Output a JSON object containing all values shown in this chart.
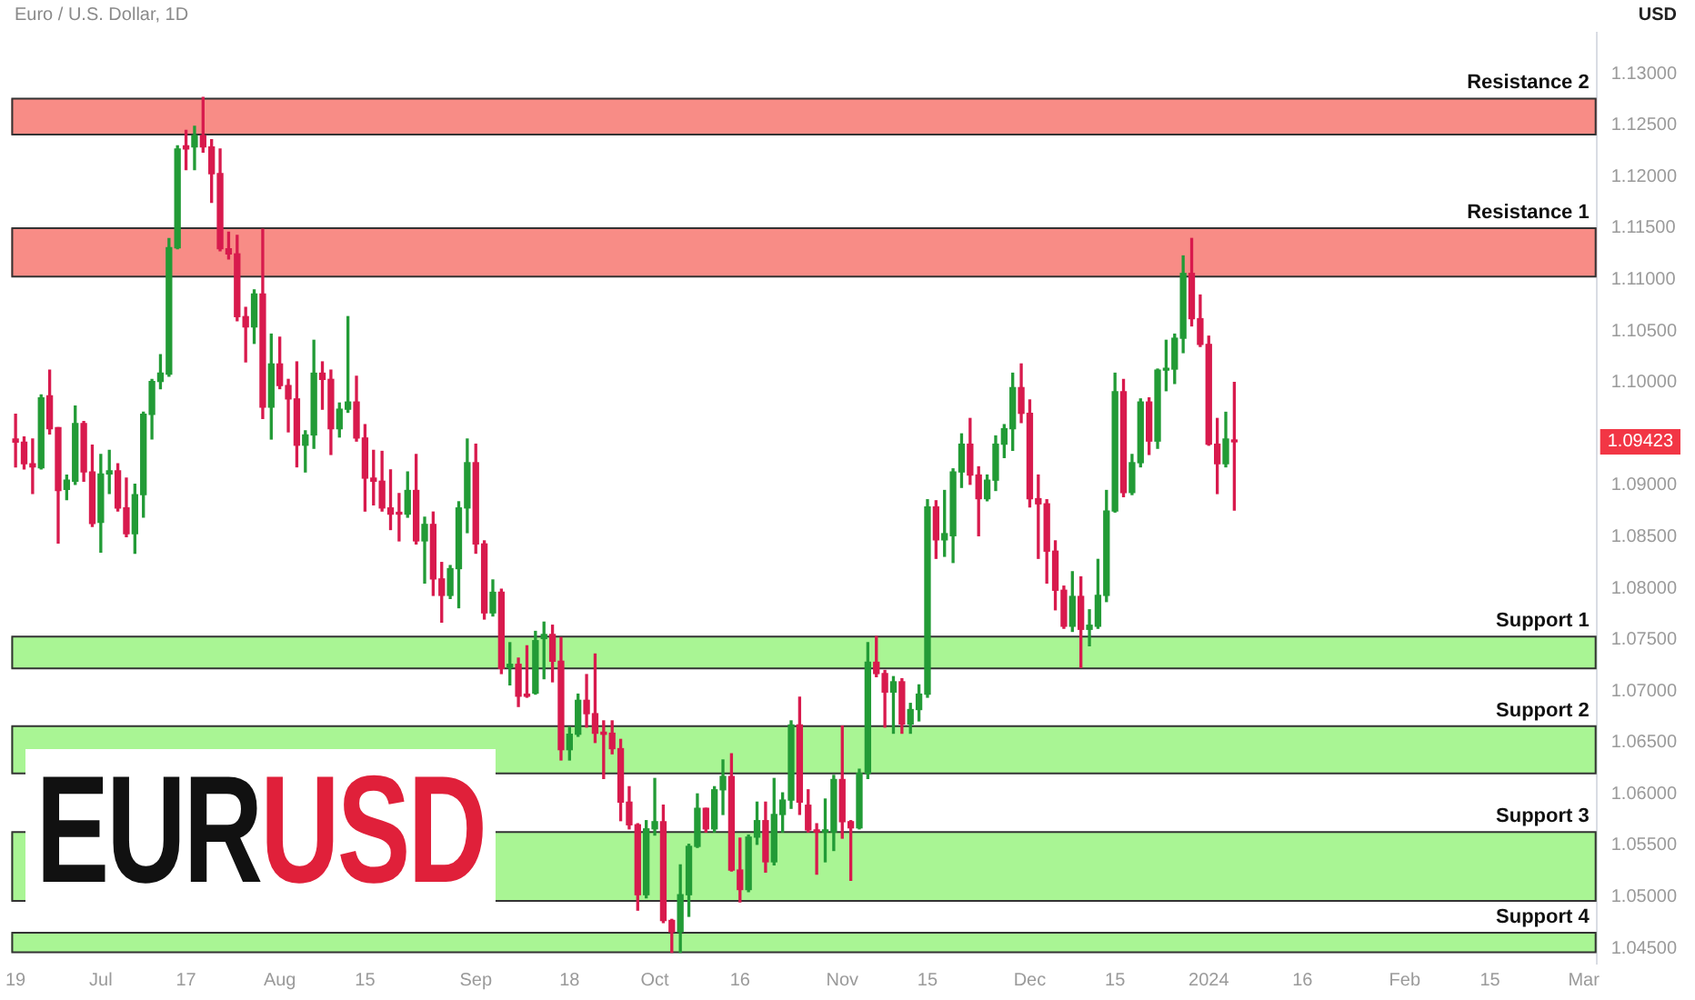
{
  "chart_data": {
    "type": "candlestick",
    "title": "Euro / U.S. Dollar, 1D",
    "subtitle": "EURUSD",
    "ylabel": "USD",
    "categories": [
      "19",
      null,
      null,
      null,
      null,
      null,
      null,
      null,
      null,
      null,
      "Jul",
      null,
      null,
      null,
      null,
      null,
      null,
      null,
      null,
      null,
      "17",
      null,
      null,
      null,
      null,
      null,
      null,
      null,
      null,
      null,
      null,
      "Aug",
      null,
      null,
      null,
      null,
      null,
      null,
      null,
      null,
      null,
      "15",
      null,
      null,
      null,
      null,
      null,
      null,
      null,
      null,
      null,
      null,
      null,
      null,
      "Sep",
      null,
      null,
      null,
      null,
      null,
      null,
      null,
      null,
      null,
      null,
      "18",
      null,
      null,
      null,
      null,
      null,
      null,
      null,
      null,
      null,
      "Oct",
      null,
      null,
      null,
      null,
      null,
      null,
      null,
      null,
      null,
      "16",
      null,
      null,
      null,
      null,
      null,
      null,
      null,
      null,
      null,
      null,
      null,
      "Nov",
      null,
      null,
      null,
      null,
      null,
      null,
      null,
      null,
      null,
      "15",
      null,
      null,
      null,
      null,
      null,
      null,
      null,
      null,
      null,
      null,
      null,
      "Dec",
      null,
      null,
      null,
      null,
      null,
      null,
      null,
      null,
      null,
      "15",
      null,
      null,
      null,
      null,
      null,
      null,
      null,
      null,
      null,
      null,
      "2024",
      null,
      null,
      null,
      null,
      null,
      null,
      null,
      null,
      null,
      null,
      "16",
      null,
      null,
      null,
      null,
      null,
      null,
      null,
      null,
      null,
      null,
      null,
      "Feb",
      null,
      null,
      null,
      null,
      null,
      null,
      null,
      null,
      null,
      "15",
      null,
      null,
      null,
      null,
      null,
      null,
      null,
      null,
      null,
      null,
      "Mar",
      null
    ],
    "colors": [
      "#d81a4d",
      "#d81a4d",
      "#d81a4d",
      "#229b36",
      "#d81a4d",
      "#d81a4d",
      "#229b36",
      "#229b36",
      "#d81a4d",
      "#d81a4d",
      "#229b36",
      "#229b36",
      "#d81a4d",
      "#d81a4d",
      "#229b36",
      "#229b36",
      "#229b36",
      "#229b36",
      "#229b36",
      "#229b36",
      "#d81a4d",
      "#229b36",
      "#d81a4d",
      "#d81a4d",
      "#d81a4d",
      "#d81a4d",
      "#d81a4d",
      "#d81a4d",
      "#229b36",
      "#d81a4d",
      "#229b36",
      "#d81a4d",
      "#d81a4d",
      "#d81a4d",
      "#229b36",
      "#229b36",
      "#d81a4d",
      "#d81a4d",
      "#229b36",
      "#229b36",
      "#d81a4d",
      "#d81a4d",
      "#d81a4d",
      "#d81a4d",
      "#d81a4d",
      "#d81a4d",
      "#229b36",
      "#d81a4d",
      "#229b36",
      "#d81a4d",
      "#d81a4d",
      "#229b36",
      "#229b36",
      "#229b36",
      "#d81a4d",
      "#d81a4d",
      "#229b36",
      "#d81a4d",
      "#229b36",
      "#d81a4d",
      "#d81a4d",
      "#229b36",
      "#229b36",
      "#d81a4d",
      "#d81a4d",
      "#229b36",
      "#229b36",
      "#d81a4d",
      "#d81a4d",
      "#d81a4d",
      "#d81a4d",
      "#d81a4d",
      "#d81a4d",
      "#d81a4d",
      "#229b36",
      "#229b36",
      "#d81a4d",
      "#d81a4d",
      "#229b36",
      "#229b36",
      "#229b36",
      "#d81a4d",
      "#229b36",
      "#229b36",
      "#d81a4d",
      "#d81a4d",
      "#229b36",
      "#229b36",
      "#d81a4d",
      "#229b36",
      "#229b36",
      "#229b36",
      "#d81a4d",
      "#d81a4d",
      "#d81a4d",
      "#229b36",
      "#229b36",
      "#d81a4d",
      "#d81a4d",
      "#229b36",
      "#229b36",
      "#d81a4d",
      "#d81a4d",
      "#229b36",
      "#d81a4d",
      "#229b36",
      "#229b36",
      "#229b36",
      "#d81a4d",
      "#229b36",
      "#229b36",
      "#229b36",
      "#d81a4d",
      "#d81a4d",
      "#229b36",
      "#229b36",
      "#229b36",
      "#229b36",
      "#d81a4d",
      "#d81a4d",
      "#d81a4d",
      "#d81a4d",
      "#d81a4d",
      "#d81a4d",
      "#229b36",
      "#d81a4d",
      "#229b36",
      "#229b36",
      "#229b36",
      "#229b36",
      "#d81a4d",
      "#229b36",
      "#229b36",
      "#d81a4d",
      "#229b36",
      "#229b36",
      "#229b36",
      "#229b36",
      "#d81a4d",
      "#d81a4d",
      "#d81a4d",
      "#d81a4d",
      "#229b36",
      "#d81a4d",
      null,
      null,
      null,
      null,
      null,
      null,
      null,
      null,
      null,
      null,
      null,
      null,
      null,
      null,
      null,
      null,
      null,
      null,
      null,
      null,
      null,
      null,
      null,
      null,
      null,
      null,
      null,
      null,
      null,
      null,
      null,
      null,
      null,
      null,
      null,
      null,
      null,
      null,
      null,
      null,
      null,
      null
    ],
    "ohlc": [
      [
        1.0945,
        1.0969,
        1.0918,
        1.0942
      ],
      [
        1.0942,
        1.0947,
        1.0916,
        1.0921
      ],
      [
        1.0921,
        1.0945,
        1.0892,
        1.0918
      ],
      [
        1.0917,
        1.0988,
        1.0916,
        1.0985
      ],
      [
        1.0987,
        1.1012,
        1.095,
        1.0955
      ],
      [
        1.0956,
        1.0956,
        1.0844,
        1.0895
      ],
      [
        1.0896,
        1.091,
        1.0886,
        1.0905
      ],
      [
        1.0904,
        1.0977,
        1.0901,
        1.096
      ],
      [
        1.096,
        1.0962,
        1.0904,
        1.0913
      ],
      [
        1.0913,
        1.0939,
        1.086,
        1.0863
      ],
      [
        1.0864,
        1.093,
        1.0835,
        1.0911
      ],
      [
        1.0911,
        1.0934,
        1.0892,
        1.0914
      ],
      [
        1.0914,
        1.0921,
        1.0875,
        1.0878
      ],
      [
        1.0878,
        1.0907,
        1.085,
        1.0853
      ],
      [
        1.0853,
        1.0901,
        1.0834,
        1.0891
      ],
      [
        1.0891,
        1.0971,
        1.0869,
        1.0969
      ],
      [
        1.0969,
        1.1003,
        1.0945,
        1.1001
      ],
      [
        1.1001,
        1.1027,
        1.0994,
        1.1009
      ],
      [
        1.1008,
        1.114,
        1.1006,
        1.1131
      ],
      [
        1.1131,
        1.123,
        1.113,
        1.1227
      ],
      [
        1.123,
        1.1245,
        1.1207,
        1.1227
      ],
      [
        1.1229,
        1.1249,
        1.1207,
        1.124
      ],
      [
        1.124,
        1.1277,
        1.1224,
        1.1229
      ],
      [
        1.1229,
        1.1236,
        1.1175,
        1.1203
      ],
      [
        1.1203,
        1.1227,
        1.1128,
        1.113
      ],
      [
        1.113,
        1.1146,
        1.112,
        1.1125
      ],
      [
        1.1125,
        1.1143,
        1.106,
        1.1064
      ],
      [
        1.1064,
        1.1073,
        1.102,
        1.1054
      ],
      [
        1.1054,
        1.109,
        1.1038,
        1.1086
      ],
      [
        1.1086,
        1.1149,
        1.0965,
        1.0976
      ],
      [
        1.0976,
        1.1047,
        1.0945,
        1.1018
      ],
      [
        1.1018,
        1.1044,
        1.0994,
        1.0997
      ],
      [
        1.0997,
        1.1003,
        1.0952,
        1.0984
      ],
      [
        1.0984,
        1.102,
        1.0918,
        1.0939
      ],
      [
        1.0939,
        1.0953,
        1.0913,
        1.0949
      ],
      [
        1.0949,
        1.1041,
        1.0936,
        1.1009
      ],
      [
        1.1009,
        1.102,
        1.0974,
        1.1003
      ],
      [
        1.1003,
        1.1012,
        1.093,
        1.0955
      ],
      [
        1.0955,
        1.098,
        1.0947,
        1.0974
      ],
      [
        1.0974,
        1.1064,
        1.0971,
        1.0981
      ],
      [
        1.0981,
        1.1006,
        1.0943,
        1.0946
      ],
      [
        1.0946,
        1.0959,
        1.0875,
        1.0907
      ],
      [
        1.0907,
        1.0934,
        1.0881,
        1.0904
      ],
      [
        1.0904,
        1.0933,
        1.0875,
        1.0878
      ],
      [
        1.0878,
        1.0915,
        1.0857,
        1.0872
      ],
      [
        1.0873,
        1.0892,
        1.0846,
        1.0872
      ],
      [
        1.0872,
        1.0913,
        1.0869,
        1.0895
      ],
      [
        1.0895,
        1.093,
        1.0843,
        1.0846
      ],
      [
        1.0846,
        1.0869,
        1.0805,
        1.0862
      ],
      [
        1.0862,
        1.0874,
        1.0793,
        1.0809
      ],
      [
        1.0809,
        1.0825,
        1.0767,
        1.0793
      ],
      [
        1.0793,
        1.0822,
        1.079,
        1.0819
      ],
      [
        1.0819,
        1.0884,
        1.0781,
        1.0878
      ],
      [
        1.0878,
        1.0945,
        1.0854,
        1.0922
      ],
      [
        1.0922,
        1.094,
        1.0834,
        1.0843
      ],
      [
        1.0843,
        1.0846,
        1.077,
        1.0776
      ],
      [
        1.0776,
        1.0808,
        1.0773,
        1.0796
      ],
      [
        1.0796,
        1.0799,
        1.0717,
        1.0722
      ],
      [
        1.0723,
        1.0747,
        1.0706,
        1.0726
      ],
      [
        1.0726,
        1.0732,
        1.0685,
        1.0695
      ],
      [
        1.0697,
        1.0744,
        1.0694,
        1.0695
      ],
      [
        1.0698,
        1.0758,
        1.0697,
        1.0749
      ],
      [
        1.0751,
        1.0767,
        1.0712,
        1.0755
      ],
      [
        1.0755,
        1.0764,
        1.0709,
        1.0729
      ],
      [
        1.0729,
        1.0752,
        1.0633,
        1.0643
      ],
      [
        1.0643,
        1.0665,
        1.0633,
        1.0658
      ],
      [
        1.0658,
        1.0697,
        1.0656,
        1.0691
      ],
      [
        1.0691,
        1.0716,
        1.0665,
        1.0678
      ],
      [
        1.0678,
        1.0736,
        1.065,
        1.0659
      ],
      [
        1.066,
        1.0671,
        1.0615,
        1.0658
      ],
      [
        1.0659,
        1.0671,
        1.0639,
        1.0644
      ],
      [
        1.0644,
        1.0653,
        1.0574,
        1.0592
      ],
      [
        1.0592,
        1.0607,
        1.0566,
        1.057
      ],
      [
        1.057,
        1.0571,
        1.0487,
        1.0502
      ],
      [
        1.0502,
        1.0574,
        1.0499,
        1.0566
      ],
      [
        1.0566,
        1.0615,
        1.056,
        1.0573
      ],
      [
        1.0573,
        1.0589,
        1.0475,
        1.0477
      ],
      [
        1.0477,
        1.0478,
        1.0446,
        1.0466
      ],
      [
        1.0466,
        1.0531,
        1.0446,
        1.0502
      ],
      [
        1.0502,
        1.0551,
        1.0481,
        1.0549
      ],
      [
        1.0549,
        1.06,
        1.0548,
        1.0586
      ],
      [
        1.0586,
        1.0586,
        1.0563,
        1.0566
      ],
      [
        1.0566,
        1.0607,
        1.0563,
        1.0604
      ],
      [
        1.0604,
        1.0633,
        1.058,
        1.0617
      ],
      [
        1.0617,
        1.0639,
        1.0525,
        1.0526
      ],
      [
        1.0526,
        1.0557,
        1.0495,
        1.0507
      ],
      [
        1.0507,
        1.056,
        1.0505,
        1.0558
      ],
      [
        1.0558,
        1.0592,
        1.0551,
        1.0574
      ],
      [
        1.0574,
        1.0592,
        1.0524,
        1.0534
      ],
      [
        1.0534,
        1.0615,
        1.0531,
        1.058
      ],
      [
        1.058,
        1.0601,
        1.0563,
        1.0594
      ],
      [
        1.0594,
        1.0671,
        1.0586,
        1.0667
      ],
      [
        1.0667,
        1.0694,
        1.058,
        1.0592
      ],
      [
        1.0589,
        1.0604,
        1.0563,
        1.0565
      ],
      [
        1.0565,
        1.0571,
        1.0522,
        1.0563
      ],
      [
        1.0563,
        1.0595,
        1.0534,
        1.0565
      ],
      [
        1.0563,
        1.0618,
        1.0545,
        1.0614
      ],
      [
        1.0614,
        1.0666,
        1.0557,
        1.0573
      ],
      [
        1.0573,
        1.0574,
        1.0516,
        1.0567
      ],
      [
        1.0567,
        1.0624,
        1.0566,
        1.062
      ],
      [
        1.062,
        1.0747,
        1.0615,
        1.0728
      ],
      [
        1.0728,
        1.0753,
        1.0714,
        1.0717
      ],
      [
        1.0717,
        1.072,
        1.0665,
        1.0699
      ],
      [
        1.0699,
        1.0714,
        1.0659,
        1.0709
      ],
      [
        1.0709,
        1.0712,
        1.0659,
        1.0668
      ],
      [
        1.0668,
        1.0688,
        1.0659,
        1.0682
      ],
      [
        1.0682,
        1.0706,
        1.0671,
        1.0697
      ],
      [
        1.0697,
        1.0886,
        1.0694,
        1.0879
      ],
      [
        1.0879,
        1.0885,
        1.0829,
        1.0847
      ],
      [
        1.0847,
        1.0895,
        1.0831,
        1.0853
      ],
      [
        1.0851,
        1.0916,
        1.0825,
        1.0913
      ],
      [
        1.0913,
        1.095,
        1.0898,
        1.094
      ],
      [
        1.094,
        1.0965,
        1.0901,
        1.091
      ],
      [
        1.091,
        1.0918,
        1.0851,
        1.0887
      ],
      [
        1.0887,
        1.091,
        1.0885,
        1.0905
      ],
      [
        1.0905,
        1.0948,
        1.0895,
        1.094
      ],
      [
        1.094,
        1.0959,
        1.0927,
        1.0955
      ],
      [
        1.0955,
        1.1009,
        1.0934,
        1.0995
      ],
      [
        1.0995,
        1.1018,
        1.0961,
        1.097
      ],
      [
        1.097,
        1.0983,
        1.0879,
        1.0887
      ],
      [
        1.0887,
        1.091,
        1.0829,
        1.0882
      ],
      [
        1.0882,
        1.0886,
        1.0805,
        1.0836
      ],
      [
        1.0836,
        1.0846,
        1.0779,
        1.0798
      ],
      [
        1.0798,
        1.0802,
        1.0761,
        1.0763
      ],
      [
        1.0763,
        1.0816,
        1.0758,
        1.0792
      ],
      [
        1.0792,
        1.0811,
        1.0723,
        1.076
      ],
      [
        1.076,
        1.0779,
        1.0744,
        1.0764
      ],
      [
        1.0763,
        1.0828,
        1.0761,
        1.0793
      ],
      [
        1.0793,
        1.0895,
        1.0787,
        1.0875
      ],
      [
        1.0875,
        1.1009,
        1.0874,
        1.0991
      ],
      [
        1.0991,
        1.1003,
        1.0889,
        1.0893
      ],
      [
        1.0893,
        1.093,
        1.0891,
        1.0922
      ],
      [
        1.0922,
        1.0984,
        1.0918,
        1.0981
      ],
      [
        1.0981,
        1.0985,
        1.093,
        1.0943
      ],
      [
        1.0943,
        1.1013,
        1.0936,
        1.1012
      ],
      [
        1.1012,
        1.1041,
        1.0992,
        1.1013
      ],
      [
        1.1013,
        1.1047,
        1.0999,
        1.1043
      ],
      [
        1.1043,
        1.1123,
        1.1029,
        1.1106
      ],
      [
        1.1106,
        1.114,
        1.1055,
        1.1062
      ],
      [
        1.1062,
        1.1085,
        1.1035,
        1.1037
      ],
      [
        1.1037,
        1.1045,
        1.0939,
        1.094
      ],
      [
        1.094,
        1.0965,
        1.0892,
        1.0921
      ],
      [
        1.0921,
        1.0971,
        1.0918,
        1.0945
      ],
      [
        1.0944,
        1.1,
        1.0876,
        1.09423
      ],
      null,
      null,
      null,
      null,
      null,
      null,
      null,
      null,
      null,
      null,
      null,
      null,
      null,
      null,
      null,
      null,
      null,
      null,
      null,
      null,
      null,
      null,
      null,
      null,
      null,
      null,
      null,
      null,
      null,
      null,
      null,
      null,
      null,
      null,
      null,
      null,
      null,
      null,
      null,
      null,
      null,
      null
    ],
    "ylim": [
      1.0435,
      1.134
    ],
    "yticks": [
      {
        "value": 1.045,
        "label": "1.04500"
      },
      {
        "value": 1.05,
        "label": "1.05000"
      },
      {
        "value": 1.055,
        "label": "1.05500"
      },
      {
        "value": 1.06,
        "label": "1.06000"
      },
      {
        "value": 1.065,
        "label": "1.06500"
      },
      {
        "value": 1.07,
        "label": "1.07000"
      },
      {
        "value": 1.075,
        "label": "1.07500"
      },
      {
        "value": 1.08,
        "label": "1.08000"
      },
      {
        "value": 1.085,
        "label": "1.08500"
      },
      {
        "value": 1.09,
        "label": "1.09000"
      },
      {
        "value": 1.1,
        "label": "1.10000"
      },
      {
        "value": 1.105,
        "label": "1.10500"
      },
      {
        "value": 1.11,
        "label": "1.11000"
      },
      {
        "value": 1.115,
        "label": "1.11500"
      },
      {
        "value": 1.12,
        "label": "1.12000"
      },
      {
        "value": 1.125,
        "label": "1.12500"
      },
      {
        "value": 1.13,
        "label": "1.13000"
      }
    ],
    "bands": [
      {
        "axis": "y",
        "from": 1.1241,
        "to": 1.1276,
        "label": "Resistance 2",
        "color": "#f88c86"
      },
      {
        "axis": "y",
        "from": 1.1103,
        "to": 1.115,
        "label": "Resistance 1",
        "color": "#f88c86"
      },
      {
        "axis": "y",
        "from": 1.0722,
        "to": 1.0753,
        "label": "Support 1",
        "color": "#a9f594"
      },
      {
        "axis": "y",
        "from": 1.062,
        "to": 1.0666,
        "label": "Support 2",
        "color": "#a9f594"
      },
      {
        "axis": "y",
        "from": 1.0496,
        "to": 1.0563,
        "label": "Support 3",
        "color": "#a9f594"
      },
      {
        "axis": "y",
        "from": 1.0446,
        "to": 1.0465,
        "label": "Support 4",
        "color": "#a9f594"
      }
    ],
    "annotations": [
      "1.09423"
    ],
    "grid": false,
    "legend": false
  }
}
